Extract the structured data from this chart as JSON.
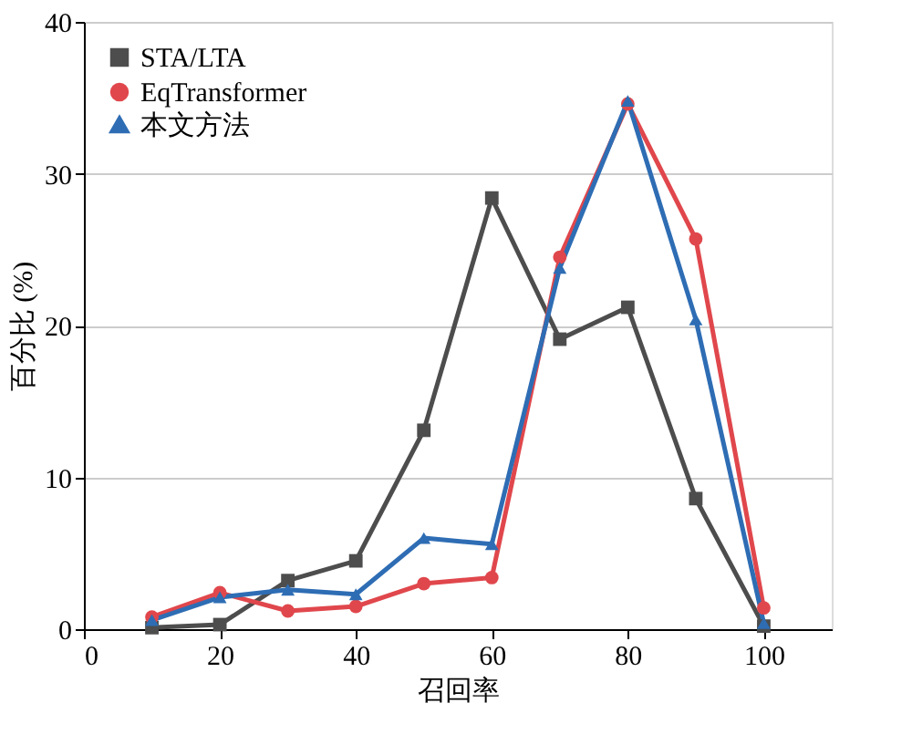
{
  "chart_data": {
    "type": "line",
    "xlabel": "召回率",
    "ylabel": "百分比 (%)",
    "x": [
      10,
      20,
      30,
      40,
      50,
      60,
      70,
      80,
      90,
      100
    ],
    "series": [
      {
        "name": "STA/LTA",
        "color": "#4d4d4d",
        "marker": "square",
        "values": [
          0.1,
          0.3,
          3.2,
          4.5,
          13.1,
          28.4,
          19.1,
          21.2,
          8.6,
          0.2
        ]
      },
      {
        "name": "EqTransformer",
        "color": "#e0474c",
        "marker": "circle",
        "values": [
          0.8,
          2.4,
          1.2,
          1.5,
          3.0,
          3.4,
          24.5,
          34.6,
          25.7,
          1.4
        ]
      },
      {
        "name": "本文方法",
        "color": "#2e6db4",
        "marker": "triangle",
        "values": [
          0.6,
          2.1,
          2.6,
          2.3,
          6.0,
          5.6,
          23.8,
          34.8,
          20.4,
          0.4
        ]
      }
    ],
    "xlim": [
      0,
      110
    ],
    "xticks": [
      0,
      20,
      40,
      60,
      80,
      100
    ],
    "ylim": [
      0,
      40
    ],
    "yticks": [
      0,
      10,
      20,
      30,
      40
    ],
    "grid": "y",
    "legend": "top left",
    "line_style": "solid"
  }
}
